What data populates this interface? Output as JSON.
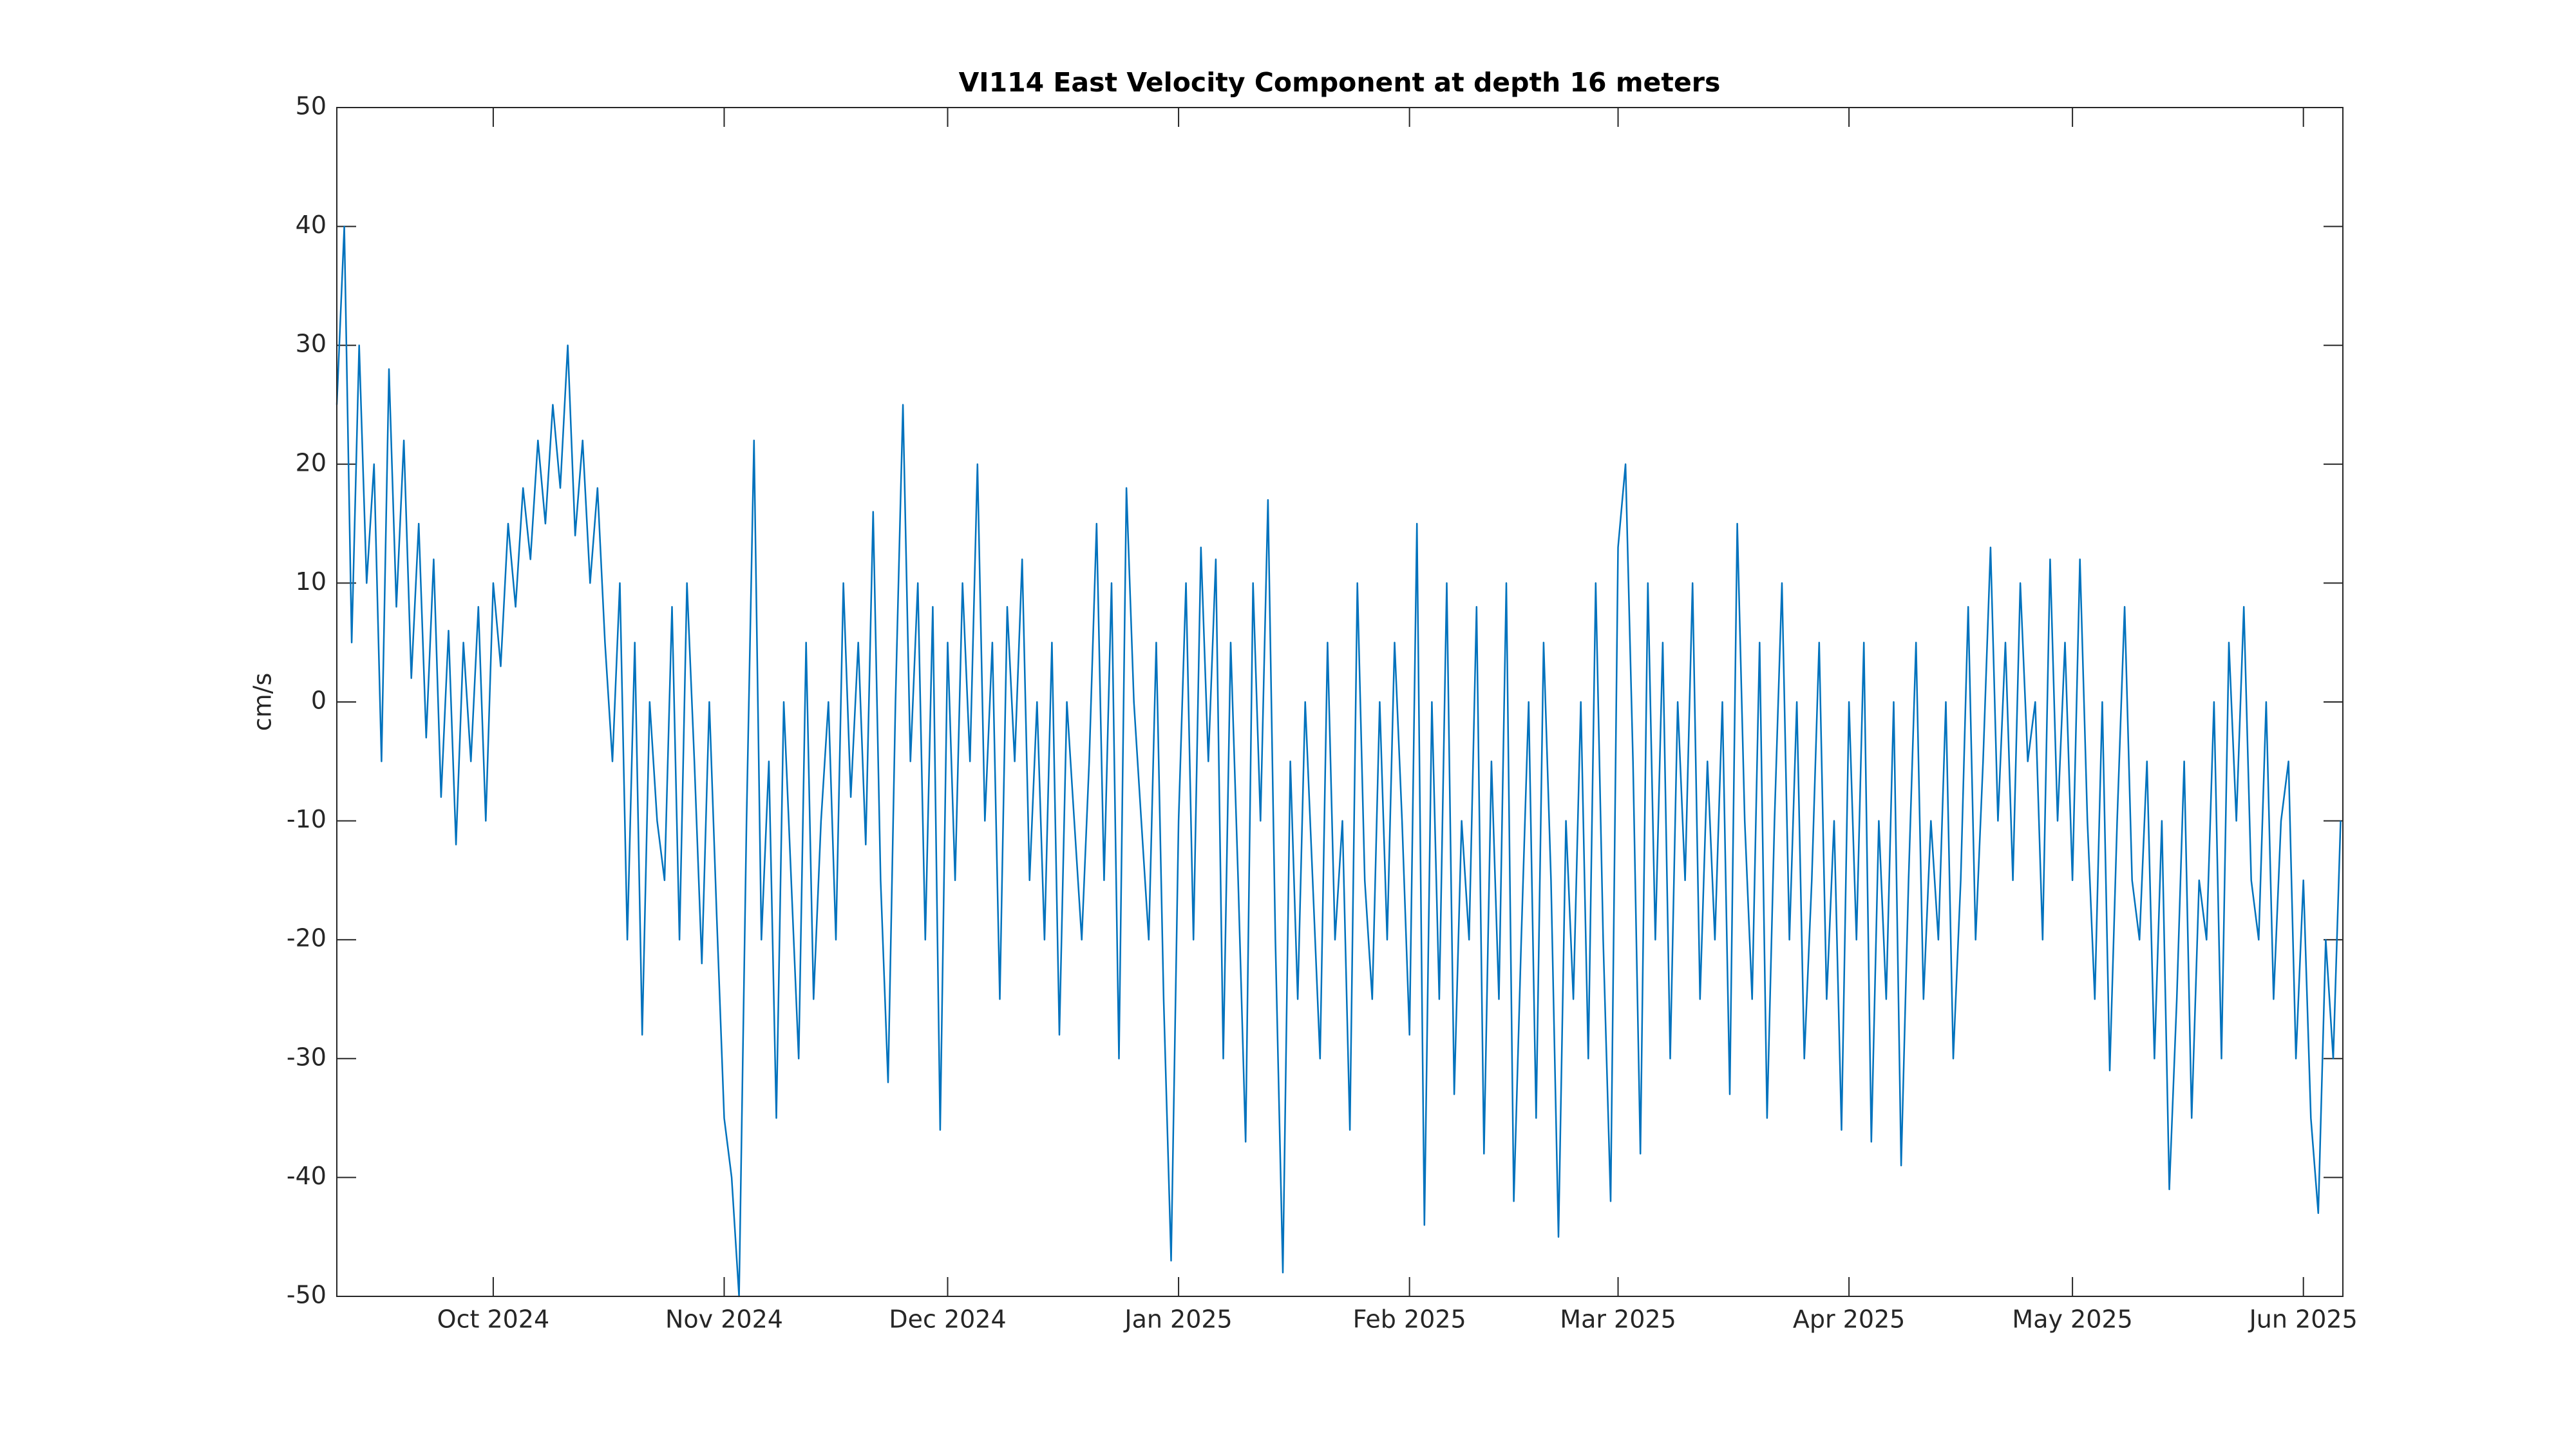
{
  "chart_data": {
    "type": "line",
    "title": "VI114 East Velocity Component at depth 16 meters",
    "y_label": "cm/s",
    "xlim": [
      -21,
      248.3
    ],
    "xticks": [
      {
        "value": 0,
        "label": "Oct 2024"
      },
      {
        "value": 31,
        "label": "Nov 2024"
      },
      {
        "value": 61,
        "label": "Dec 2024"
      },
      {
        "value": 92,
        "label": "Jan 2025"
      },
      {
        "value": 123,
        "label": "Feb 2025"
      },
      {
        "value": 151,
        "label": "Mar 2025"
      },
      {
        "value": 182,
        "label": "Apr 2025"
      },
      {
        "value": 212,
        "label": "May 2025"
      },
      {
        "value": 243,
        "label": "Jun 2025"
      }
    ],
    "ylim": [
      -50,
      50
    ],
    "yticks": [
      -50,
      -40,
      -30,
      -20,
      -10,
      0,
      10,
      20,
      30,
      40,
      50
    ],
    "grid": false,
    "series": [
      {
        "color": "#0072bd",
        "x": [
          -21,
          -20,
          -19,
          -18,
          -17,
          -16,
          -15,
          -14,
          -13,
          -12,
          -11,
          -10,
          -9,
          -8,
          -7,
          -6,
          -5,
          -4,
          -3,
          -2,
          -1,
          0,
          1,
          2,
          3,
          4,
          5,
          6,
          7,
          8,
          9,
          10,
          11,
          12,
          13,
          14,
          15,
          16,
          17,
          18,
          19,
          20,
          21,
          22,
          23,
          24,
          25,
          26,
          27,
          28,
          29,
          30,
          31,
          32,
          33,
          34,
          35,
          36,
          37,
          38,
          39,
          40,
          41,
          42,
          43,
          44,
          45,
          46,
          47,
          48,
          49,
          50,
          51,
          52,
          53,
          54,
          55,
          56,
          57,
          58,
          59,
          60,
          61,
          62,
          63,
          64,
          65,
          66,
          67,
          68,
          69,
          70,
          71,
          72,
          73,
          74,
          75,
          76,
          77,
          78,
          79,
          80,
          81,
          82,
          83,
          84,
          85,
          86,
          87,
          88,
          89,
          90,
          91,
          92,
          93,
          94,
          95,
          96,
          97,
          98,
          99,
          100,
          101,
          102,
          103,
          104,
          105,
          106,
          107,
          108,
          109,
          110,
          111,
          112,
          113,
          114,
          115,
          116,
          117,
          118,
          119,
          120,
          121,
          122,
          123,
          124,
          125,
          126,
          127,
          128,
          129,
          130,
          131,
          132,
          133,
          134,
          135,
          136,
          137,
          138,
          139,
          140,
          141,
          142,
          143,
          144,
          145,
          146,
          147,
          148,
          149,
          150,
          151,
          152,
          153,
          154,
          155,
          156,
          157,
          158,
          159,
          160,
          161,
          162,
          163,
          164,
          165,
          166,
          167,
          168,
          169,
          170,
          171,
          172,
          173,
          174,
          175,
          176,
          177,
          178,
          179,
          180,
          181,
          182,
          183,
          184,
          185,
          186,
          187,
          188,
          189,
          190,
          191,
          192,
          193,
          194,
          195,
          196,
          197,
          198,
          199,
          200,
          201,
          202,
          203,
          204,
          205,
          206,
          207,
          208,
          209,
          210,
          211,
          212,
          213,
          214,
          215,
          216,
          217,
          218,
          219,
          220,
          221,
          222,
          223,
          224,
          225,
          226,
          227,
          228,
          229,
          230,
          231,
          232,
          233,
          234,
          235,
          236,
          237,
          238,
          239,
          240,
          241,
          242,
          243,
          244,
          245,
          246,
          247,
          248
        ],
        "values": [
          25,
          40,
          5,
          30,
          10,
          20,
          -5,
          28,
          8,
          22,
          2,
          15,
          -3,
          12,
          -8,
          6,
          -12,
          5,
          -5,
          8,
          -10,
          10,
          3,
          15,
          8,
          18,
          12,
          22,
          15,
          25,
          18,
          30,
          14,
          22,
          10,
          18,
          5,
          -5,
          10,
          -20,
          5,
          -28,
          0,
          -10,
          -15,
          8,
          -20,
          10,
          -5,
          -22,
          0,
          -18,
          -35,
          -40,
          -50,
          -10,
          22,
          -20,
          -5,
          -35,
          0,
          -15,
          -30,
          5,
          -25,
          -10,
          0,
          -20,
          10,
          -8,
          5,
          -12,
          16,
          -15,
          -32,
          0,
          25,
          -5,
          10,
          -20,
          8,
          -36,
          5,
          -15,
          10,
          -5,
          20,
          -10,
          5,
          -25,
          8,
          -5,
          12,
          -15,
          0,
          -20,
          5,
          -28,
          0,
          -10,
          -20,
          -5,
          15,
          -15,
          10,
          -30,
          18,
          0,
          -10,
          -20,
          5,
          -25,
          -47,
          -10,
          10,
          -20,
          13,
          -5,
          12,
          -30,
          5,
          -15,
          -37,
          10,
          -10,
          17,
          -20,
          -48,
          -5,
          -25,
          0,
          -15,
          -30,
          5,
          -20,
          -10,
          -36,
          10,
          -15,
          -25,
          0,
          -20,
          5,
          -10,
          -28,
          15,
          -44,
          0,
          -25,
          10,
          -33,
          -10,
          -20,
          8,
          -38,
          -5,
          -25,
          10,
          -42,
          -20,
          0,
          -35,
          5,
          -15,
          -45,
          -10,
          -25,
          0,
          -30,
          10,
          -20,
          -42,
          13,
          20,
          -5,
          -38,
          10,
          -20,
          5,
          -30,
          0,
          -15,
          10,
          -25,
          -5,
          -20,
          0,
          -33,
          15,
          -10,
          -25,
          5,
          -35,
          -10,
          10,
          -20,
          0,
          -30,
          -15,
          5,
          -25,
          -10,
          -36,
          0,
          -20,
          5,
          -37,
          -10,
          -25,
          0,
          -39,
          -15,
          5,
          -25,
          -10,
          -20,
          0,
          -30,
          -15,
          8,
          -20,
          -5,
          13,
          -10,
          5,
          -15,
          10,
          -5,
          0,
          -20,
          12,
          -10,
          5,
          -15,
          12,
          -10,
          -25,
          0,
          -31,
          -10,
          8,
          -15,
          -20,
          -5,
          -30,
          -10,
          -41,
          -25,
          -5,
          -35,
          -15,
          -20,
          0,
          -30,
          5,
          -10,
          8,
          -15,
          -20,
          0,
          -25,
          -10,
          -5,
          -30,
          -15,
          -35,
          -43,
          -20,
          -30,
          -10
        ]
      }
    ]
  }
}
